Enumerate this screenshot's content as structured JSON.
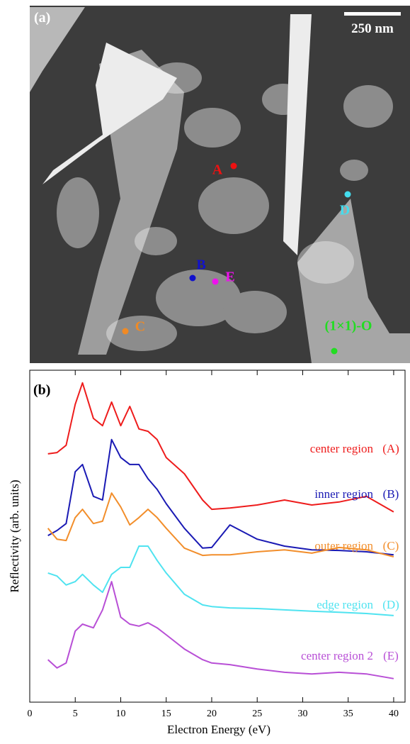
{
  "image_panel": {
    "label": "(a)",
    "scale_bar": "250 nm",
    "points": [
      {
        "label": "A",
        "color": "#ee1111"
      },
      {
        "label": "B",
        "color": "#1111cc"
      },
      {
        "label": "C",
        "color": "#f08a24"
      },
      {
        "label": "D",
        "color": "#44ddee"
      },
      {
        "label": "E",
        "color": "#ee11ee"
      },
      {
        "label": "(1×1)-O",
        "color": "#22dd22"
      }
    ]
  },
  "chart_data": {
    "type": "line",
    "panel_label": "(b)",
    "x_label": "Electron Energy (eV)",
    "y_label": "Reflectivity (arb. units)",
    "x": [
      2,
      3,
      4,
      5,
      5.8,
      7,
      8,
      9,
      10,
      11,
      12,
      13,
      14,
      15,
      17,
      19,
      20,
      22,
      25,
      28,
      31,
      34,
      37,
      40
    ],
    "xlim": [
      0,
      41.25
    ],
    "xticks": [
      0,
      5,
      10,
      15,
      20,
      25,
      30,
      35,
      40
    ],
    "ylim": [
      0,
      10
    ],
    "series": [
      {
        "name": "center region",
        "tag": "(A)",
        "color": "#ee1c1c",
        "values": [
          7.48,
          7.52,
          7.74,
          8.97,
          9.62,
          8.55,
          8.33,
          9.04,
          8.33,
          8.91,
          8.23,
          8.16,
          7.91,
          7.37,
          6.88,
          6.09,
          5.81,
          5.85,
          5.94,
          6.09,
          5.94,
          6.03,
          6.2,
          5.73
        ]
      },
      {
        "name": "inner region",
        "tag": "(B)",
        "color": "#1a1ab4",
        "values": [
          5.02,
          5.17,
          5.38,
          6.94,
          7.16,
          6.2,
          6.09,
          7.91,
          7.37,
          7.16,
          7.16,
          6.73,
          6.41,
          5.98,
          5.24,
          4.64,
          4.66,
          5.34,
          4.91,
          4.7,
          4.59,
          4.57,
          4.53,
          4.44
        ]
      },
      {
        "name": "outer region",
        "tag": "(C)",
        "color": "#f28e2b",
        "values": [
          5.24,
          4.91,
          4.87,
          5.56,
          5.81,
          5.38,
          5.45,
          6.3,
          5.88,
          5.34,
          5.56,
          5.81,
          5.56,
          5.24,
          4.64,
          4.42,
          4.44,
          4.44,
          4.53,
          4.59,
          4.49,
          4.66,
          4.59,
          4.38
        ]
      },
      {
        "name": "edge region",
        "tag": "(D)",
        "color": "#4fe3f0",
        "values": [
          3.89,
          3.8,
          3.53,
          3.63,
          3.85,
          3.53,
          3.31,
          3.85,
          4.06,
          4.06,
          4.7,
          4.7,
          4.27,
          3.89,
          3.25,
          2.93,
          2.88,
          2.84,
          2.82,
          2.78,
          2.74,
          2.71,
          2.67,
          2.61
        ]
      },
      {
        "name": "center region 2",
        "tag": "(E)",
        "color": "#b84fd6",
        "values": [
          1.28,
          1.03,
          1.18,
          2.14,
          2.35,
          2.24,
          2.78,
          3.63,
          2.56,
          2.35,
          2.29,
          2.39,
          2.24,
          2.03,
          1.6,
          1.28,
          1.18,
          1.13,
          1.0,
          0.9,
          0.85,
          0.9,
          0.85,
          0.71
        ]
      }
    ]
  }
}
